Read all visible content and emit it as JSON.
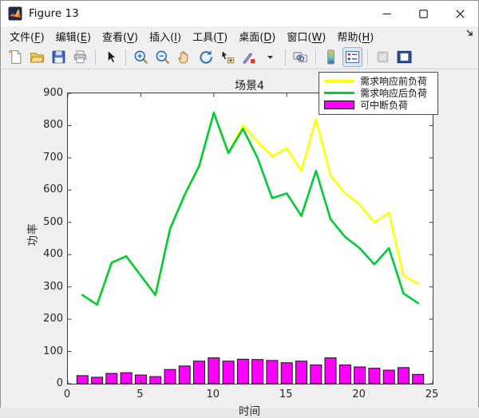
{
  "window": {
    "title": "Figure 13",
    "controls": {
      "minimize": "minimize",
      "maximize": "maximize",
      "close": "close"
    }
  },
  "menu": {
    "items": [
      {
        "text": "文件",
        "mnemonic": "F"
      },
      {
        "text": "编辑",
        "mnemonic": "E"
      },
      {
        "text": "查看",
        "mnemonic": "V"
      },
      {
        "text": "插入",
        "mnemonic": "I"
      },
      {
        "text": "工具",
        "mnemonic": "T"
      },
      {
        "text": "桌面",
        "mnemonic": "D"
      },
      {
        "text": "窗口",
        "mnemonic": "W"
      },
      {
        "text": "帮助",
        "mnemonic": "H"
      }
    ]
  },
  "toolbar": {
    "icons": [
      {
        "name": "new-figure-icon"
      },
      {
        "name": "open-file-icon"
      },
      {
        "name": "save-figure-icon"
      },
      {
        "name": "print-figure-icon"
      },
      {
        "sep": true
      },
      {
        "name": "pointer-icon"
      },
      {
        "sep": true
      },
      {
        "name": "zoom-in-icon"
      },
      {
        "name": "zoom-out-icon"
      },
      {
        "name": "pan-hand-icon"
      },
      {
        "name": "rotate-3d-icon"
      },
      {
        "name": "data-cursor-icon"
      },
      {
        "name": "brush-icon"
      },
      {
        "name": "brush-dropdown-icon"
      },
      {
        "sep": true
      },
      {
        "name": "link-plots-icon"
      },
      {
        "sep": true
      },
      {
        "name": "colorbar-icon"
      },
      {
        "name": "legend-toggle-icon",
        "active": true
      },
      {
        "sep": true
      },
      {
        "name": "plot-tools-off-icon",
        "disabled": true
      },
      {
        "name": "plot-tools-dock-icon"
      }
    ]
  },
  "chart_data": {
    "type": "combo",
    "title": "场景4",
    "xlabel": "时间",
    "ylabel": "功率",
    "xlim": [
      0,
      25
    ],
    "ylim": [
      0,
      900
    ],
    "xticks": [
      0,
      5,
      10,
      15,
      20,
      25
    ],
    "yticks": [
      0,
      100,
      200,
      300,
      400,
      500,
      600,
      700,
      800,
      900
    ],
    "x": [
      1,
      2,
      3,
      4,
      5,
      6,
      7,
      8,
      9,
      10,
      11,
      12,
      13,
      14,
      15,
      16,
      17,
      18,
      19,
      20,
      21,
      22,
      23,
      24
    ],
    "series": [
      {
        "name": "需求响应前负荷",
        "type": "line",
        "color": "#ffff00",
        "values": [
          275,
          245,
          375,
          395,
          335,
          275,
          480,
          585,
          675,
          840,
          715,
          800,
          750,
          705,
          730,
          660,
          820,
          645,
          590,
          555,
          500,
          530,
          335,
          310
        ]
      },
      {
        "name": "需求响应后负荷",
        "type": "line",
        "color": "#00cc33",
        "values": [
          275,
          245,
          375,
          395,
          335,
          275,
          480,
          585,
          675,
          840,
          715,
          790,
          700,
          575,
          590,
          520,
          660,
          510,
          455,
          420,
          370,
          420,
          280,
          250
        ]
      },
      {
        "name": "可中断负荷",
        "type": "bar",
        "color": "#ff00ff",
        "values": [
          25,
          20,
          32,
          34,
          27,
          22,
          44,
          55,
          70,
          80,
          70,
          76,
          75,
          72,
          65,
          70,
          58,
          80,
          58,
          52,
          48,
          42,
          50,
          29
        ]
      }
    ],
    "legend_position": "top-right",
    "axis_color": "#3c3c3c",
    "grid": false
  }
}
